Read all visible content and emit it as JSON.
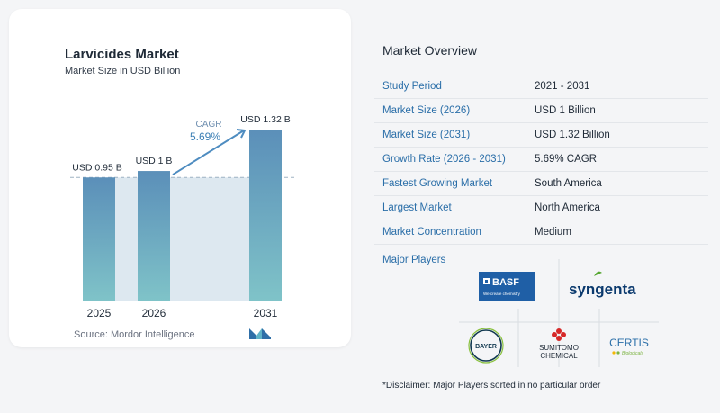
{
  "chart_data": {
    "type": "bar",
    "title": "Larvicides Market",
    "subtitle": "Market Size in USD Billion",
    "categories": [
      "2025",
      "2026",
      "2031"
    ],
    "values": [
      0.95,
      1.0,
      1.32
    ],
    "data_labels": [
      "USD 0.95 B",
      "USD 1 B",
      "USD 1.32 B"
    ],
    "cagr_label": "CAGR",
    "cagr_value": "5.69%",
    "ylim": [
      0,
      1.32
    ],
    "reference_line_value": 0.95,
    "colors": {
      "bar_top": "#5b8fb9",
      "bar_bottom": "#7fc3c8",
      "band": "#dde8f0",
      "arrow": "#4e8cc0",
      "cagr_text": "#3b7fb5"
    }
  },
  "source": "Source:  Mordor Intelligence",
  "overview": {
    "title": "Market Overview",
    "rows": [
      {
        "label": "Study Period",
        "value": "2021 - 2031"
      },
      {
        "label": "Market Size (2026)",
        "value": "USD 1 Billion"
      },
      {
        "label": "Market Size (2031)",
        "value": "USD 1.32 Billion"
      },
      {
        "label": "Growth Rate (2026 - 2031)",
        "value": "5.69% CAGR"
      },
      {
        "label": "Fastest Growing Market",
        "value": "South America"
      },
      {
        "label": "Largest Market",
        "value": "North America"
      },
      {
        "label": "Market Concentration",
        "value": "Medium"
      }
    ],
    "players_title": "Major Players",
    "players": {
      "basf": "BASF",
      "basf_tagline": "We create chemistry",
      "syngenta": "syngenta",
      "bayer": "BAYER",
      "sumitomo_line1": "SUMITOMO",
      "sumitomo_line2": "CHEMICAL",
      "certis": "CERTIS",
      "certis_tagline": "Biologicals"
    },
    "disclaimer": "*Disclaimer: Major Players sorted in no particular order"
  }
}
